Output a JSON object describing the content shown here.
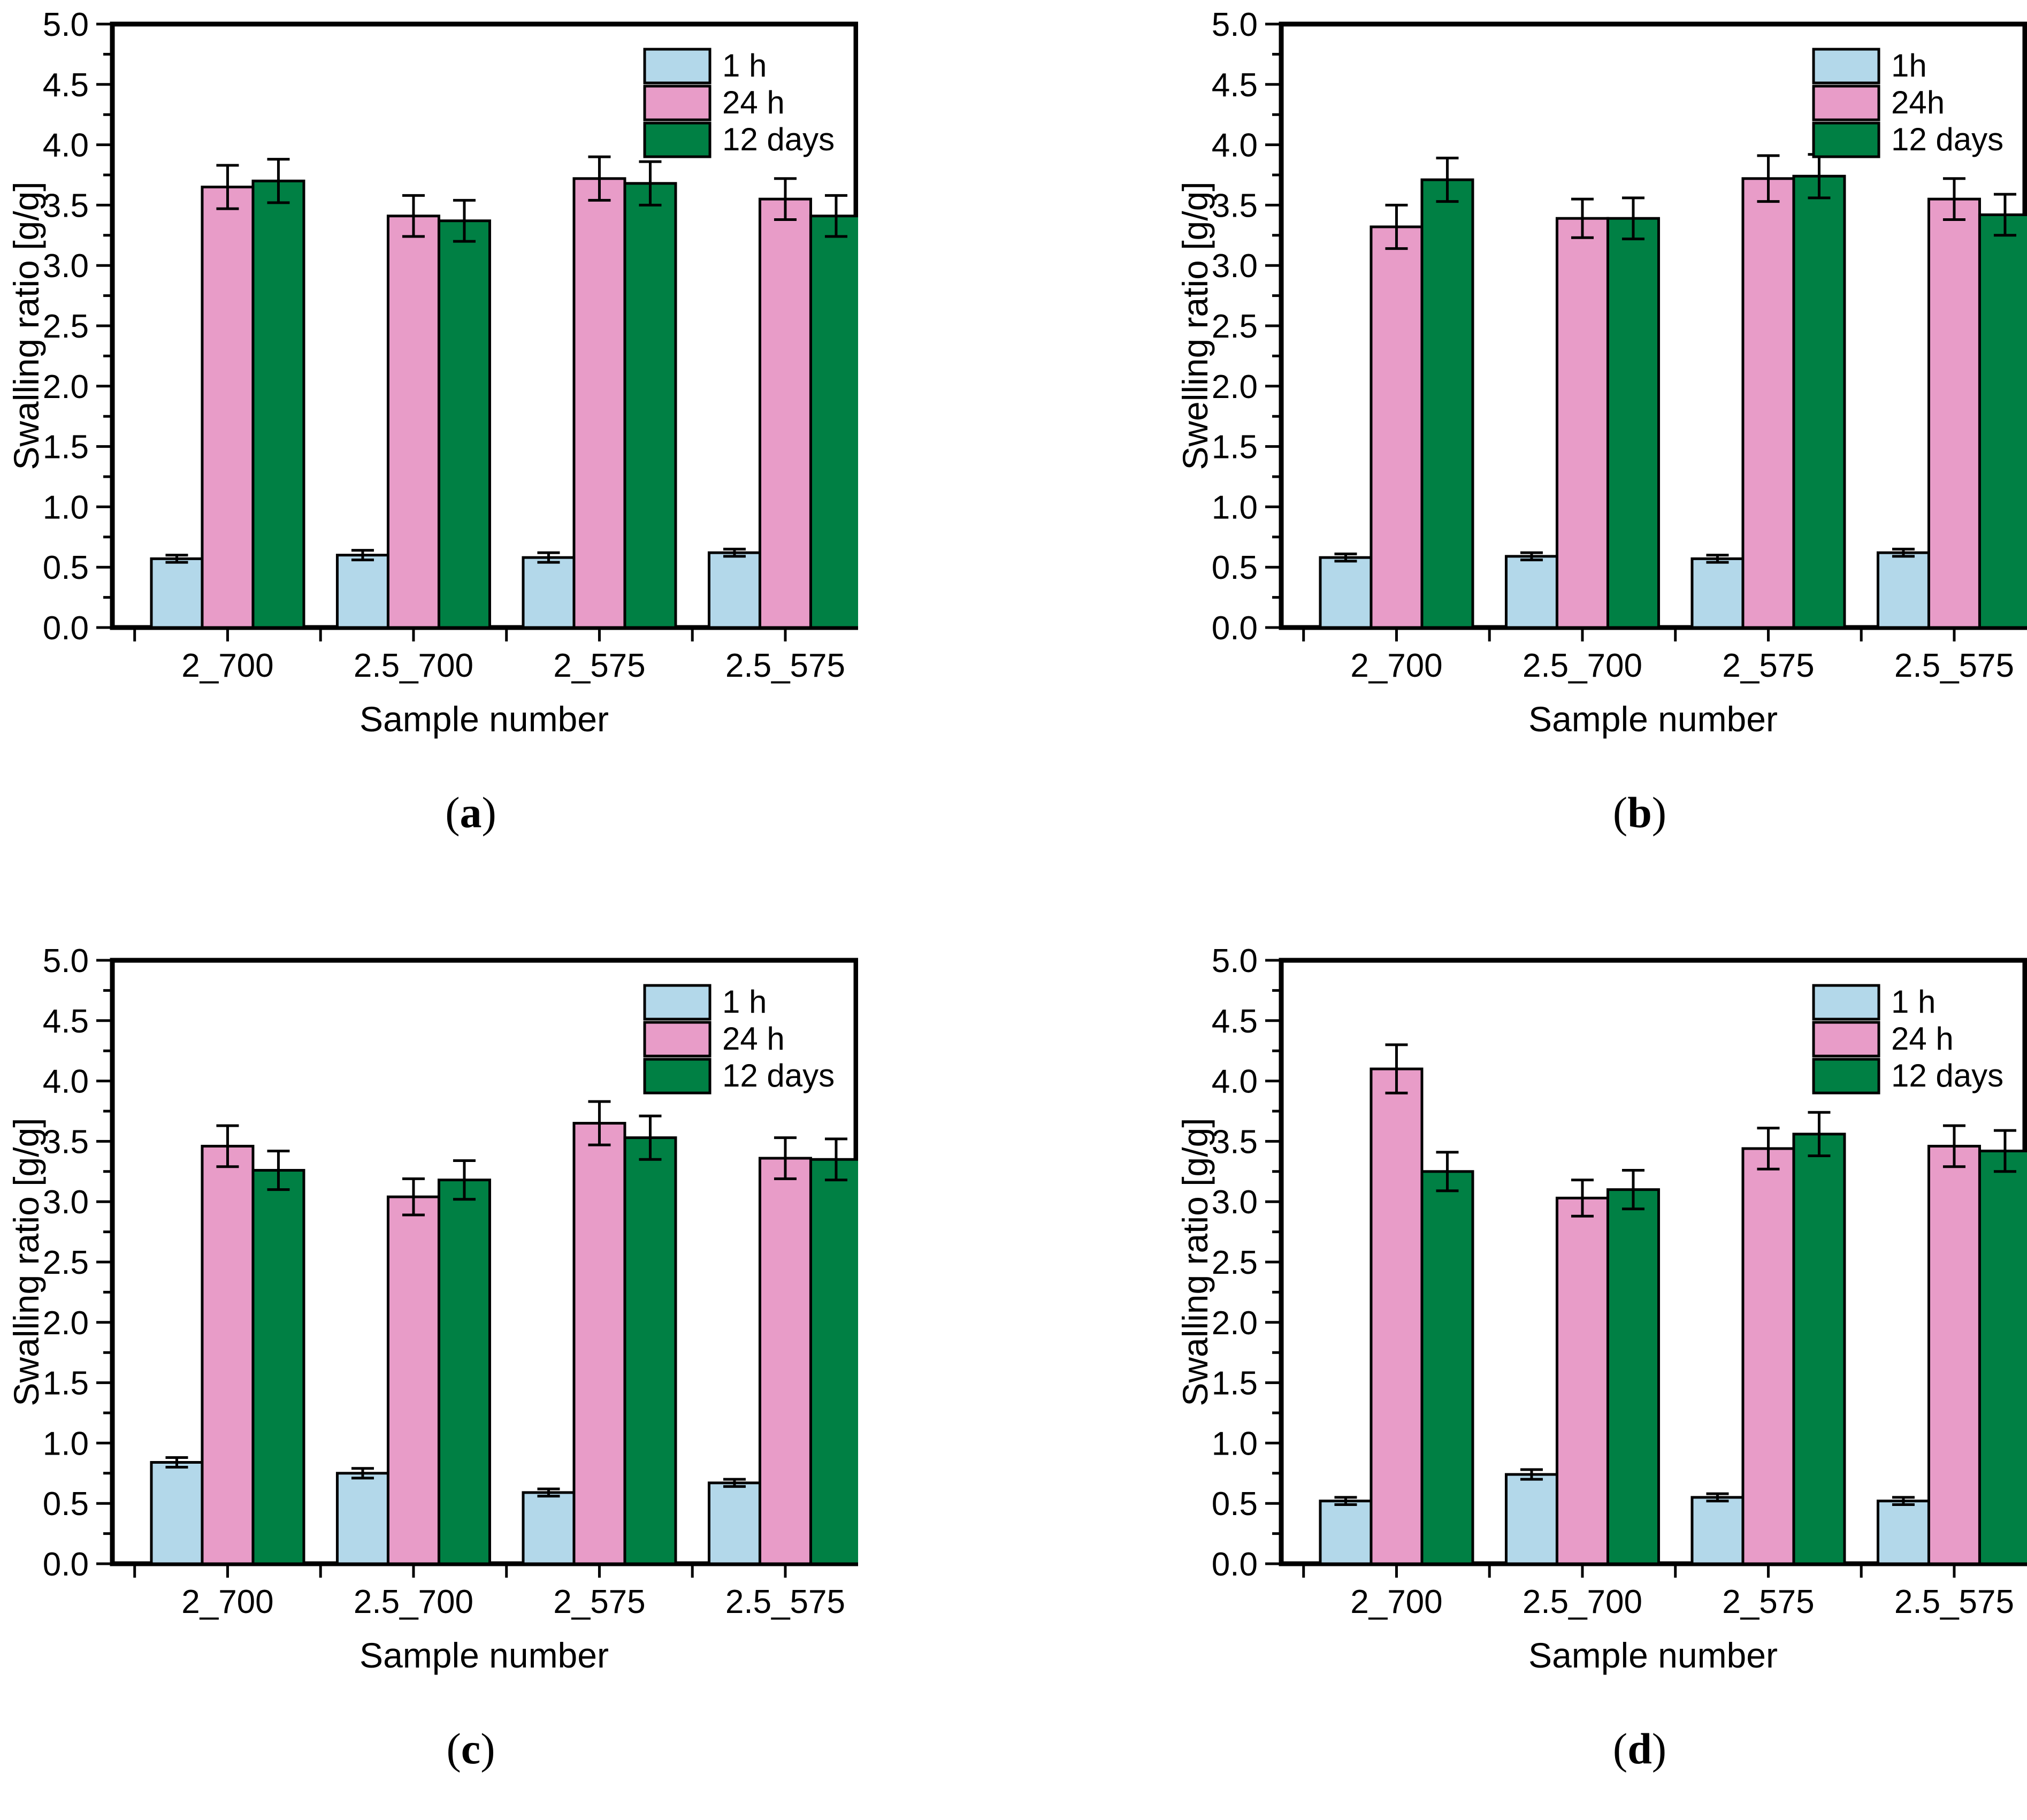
{
  "figure": {
    "paren_open": "(",
    "paren_close": ")",
    "colors": {
      "series_1h": "#B3D8EA",
      "series_24h": "#E89CC8",
      "series_12days": "#008044",
      "axis": "#000000",
      "background": "#FFFFFF"
    }
  },
  "chart_data": [
    {
      "type": "bar",
      "panel_label": "a",
      "ylabel": "Swalling ratio [g/g]",
      "xlabel": "Sample number",
      "ylim": [
        0.0,
        5.0
      ],
      "ytick_step": 0.5,
      "ytick_minor_step": 0.25,
      "grid": false,
      "legend_position": "top-right-inside",
      "categories": [
        "2_700",
        "2.5_700",
        "2_575",
        "2.5_575"
      ],
      "series": [
        {
          "name": "1 h",
          "color": "#B3D8EA",
          "values": [
            0.57,
            0.6,
            0.58,
            0.62
          ],
          "errors": [
            0.03,
            0.04,
            0.04,
            0.03
          ]
        },
        {
          "name": "24 h",
          "color": "#E89CC8",
          "values": [
            3.65,
            3.41,
            3.72,
            3.55
          ],
          "errors": [
            0.18,
            0.17,
            0.18,
            0.17
          ]
        },
        {
          "name": "12 days",
          "color": "#008044",
          "values": [
            3.7,
            3.37,
            3.68,
            3.41
          ],
          "errors": [
            0.18,
            0.17,
            0.18,
            0.17
          ]
        }
      ]
    },
    {
      "type": "bar",
      "panel_label": "b",
      "ylabel": "Swelling ratio [g/g]",
      "xlabel": "Sample number",
      "ylim": [
        0.0,
        5.0
      ],
      "ytick_step": 0.5,
      "ytick_minor_step": 0.25,
      "grid": false,
      "legend_position": "top-right-inside",
      "categories": [
        "2_700",
        "2.5_700",
        "2_575",
        "2.5_575"
      ],
      "series": [
        {
          "name": "1h",
          "color": "#B3D8EA",
          "values": [
            0.58,
            0.59,
            0.57,
            0.62
          ],
          "errors": [
            0.03,
            0.03,
            0.03,
            0.03
          ]
        },
        {
          "name": "24h",
          "color": "#E89CC8",
          "values": [
            3.32,
            3.39,
            3.72,
            3.55
          ],
          "errors": [
            0.18,
            0.16,
            0.19,
            0.17
          ]
        },
        {
          "name": "12 days",
          "color": "#008044",
          "values": [
            3.71,
            3.39,
            3.74,
            3.42
          ],
          "errors": [
            0.18,
            0.17,
            0.18,
            0.17
          ]
        }
      ]
    },
    {
      "type": "bar",
      "panel_label": "c",
      "ylabel": "Swalling ratio [g/g]",
      "xlabel": "Sample number",
      "ylim": [
        0.0,
        5.0
      ],
      "ytick_step": 0.5,
      "ytick_minor_step": 0.25,
      "grid": false,
      "legend_position": "top-right-inside",
      "categories": [
        "2_700",
        "2.5_700",
        "2_575",
        "2.5_575"
      ],
      "series": [
        {
          "name": "1 h",
          "color": "#B3D8EA",
          "values": [
            0.84,
            0.75,
            0.59,
            0.67
          ],
          "errors": [
            0.04,
            0.04,
            0.03,
            0.03
          ]
        },
        {
          "name": "24 h",
          "color": "#E89CC8",
          "values": [
            3.46,
            3.04,
            3.65,
            3.36
          ],
          "errors": [
            0.17,
            0.15,
            0.18,
            0.17
          ]
        },
        {
          "name": "12 days",
          "color": "#008044",
          "values": [
            3.26,
            3.18,
            3.53,
            3.35
          ],
          "errors": [
            0.16,
            0.16,
            0.18,
            0.17
          ]
        }
      ]
    },
    {
      "type": "bar",
      "panel_label": "d",
      "ylabel": "Swalling ratio [g/g]",
      "xlabel": "Sample number",
      "ylim": [
        0.0,
        5.0
      ],
      "ytick_step": 0.5,
      "ytick_minor_step": 0.25,
      "grid": false,
      "legend_position": "top-right-inside",
      "categories": [
        "2_700",
        "2.5_700",
        "2_575",
        "2.5_575"
      ],
      "series": [
        {
          "name": "1 h",
          "color": "#B3D8EA",
          "values": [
            0.52,
            0.74,
            0.55,
            0.52
          ],
          "errors": [
            0.03,
            0.04,
            0.03,
            0.03
          ]
        },
        {
          "name": "24 h",
          "color": "#E89CC8",
          "values": [
            4.1,
            3.03,
            3.44,
            3.46
          ],
          "errors": [
            0.2,
            0.15,
            0.17,
            0.17
          ]
        },
        {
          "name": "12 days",
          "color": "#008044",
          "values": [
            3.25,
            3.1,
            3.56,
            3.42
          ],
          "errors": [
            0.16,
            0.16,
            0.18,
            0.17
          ]
        }
      ]
    }
  ]
}
